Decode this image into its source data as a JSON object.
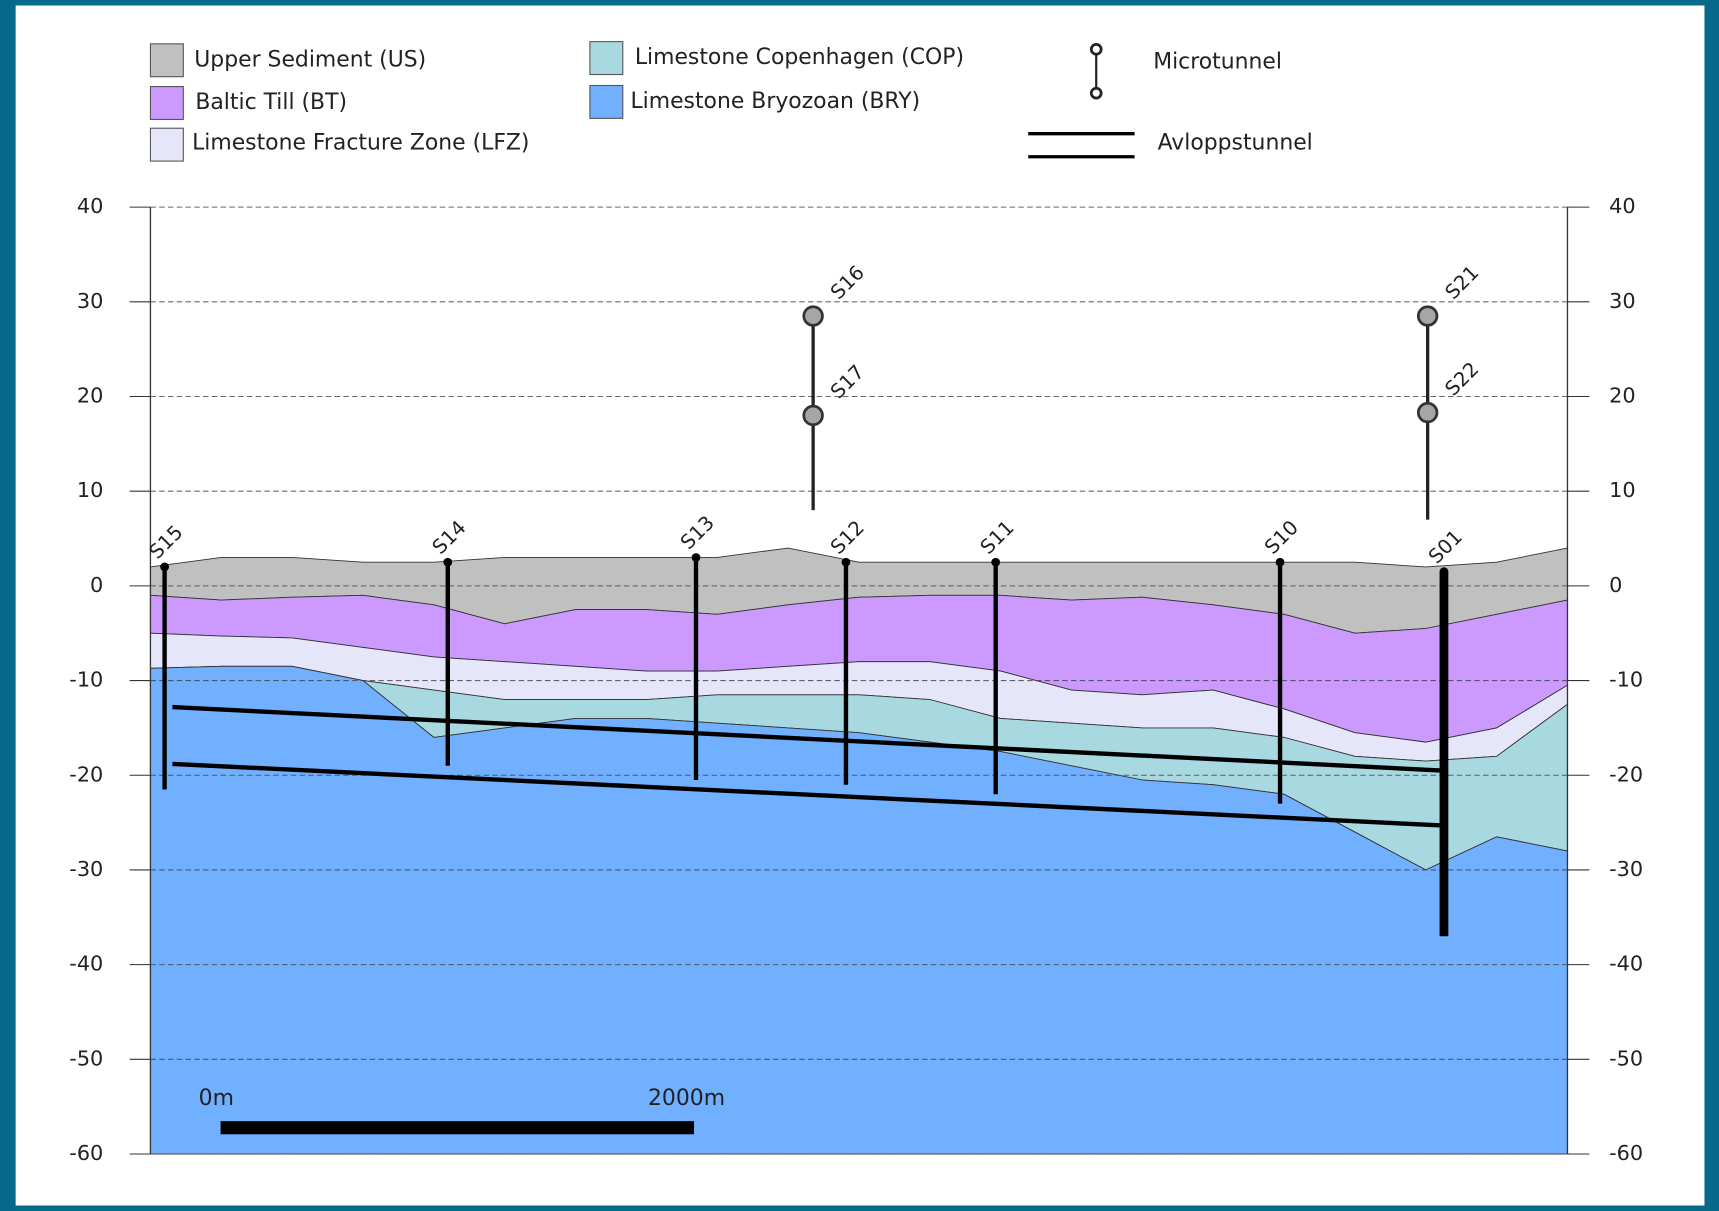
{
  "chart_data": {
    "type": "section",
    "xlim": [
      0,
      6000
    ],
    "ylim": [
      -60,
      40
    ],
    "yticks": [
      40,
      30,
      20,
      10,
      0,
      -10,
      -20,
      -30,
      -40,
      -50,
      -60
    ],
    "grid": true,
    "x": [
      0,
      300,
      600,
      900,
      1200,
      1500,
      1800,
      2100,
      2400,
      2700,
      3000,
      3300,
      3600,
      3900,
      4200,
      4500,
      4800,
      5100,
      5400,
      5700,
      6000
    ],
    "series": [
      {
        "name": "Upper Sediment (US)",
        "color": "#c0c0c0",
        "values": [
          2,
          3,
          3,
          2.5,
          2.5,
          3,
          3,
          3,
          3,
          4,
          2.5,
          2.5,
          2.5,
          2.5,
          2.5,
          2.5,
          2.5,
          2.5,
          2,
          2.5,
          4
        ]
      },
      {
        "name": "Baltic Till (BT)",
        "color": "#cc99ff",
        "values": [
          -1,
          -1.5,
          -1.2,
          -1,
          -2,
          -4,
          -2.5,
          -2.5,
          -3,
          -2,
          -1.2,
          -1,
          -1,
          -1.5,
          -1.2,
          -2,
          -3,
          -5,
          -4.5,
          -3,
          -1.5
        ]
      },
      {
        "name": "Limestone Fracture Zone (LFZ)",
        "color": "#e6e6fa",
        "values": [
          -5,
          -5.3,
          -5.5,
          -6.5,
          -7.5,
          -8,
          -8.5,
          -9,
          -9,
          -8.5,
          -8,
          -8,
          -9,
          -11,
          -11.5,
          -11,
          -13,
          -15.5,
          -16.5,
          -15,
          -10.5
        ]
      },
      {
        "name": "Limestone Copenhagen (COP)",
        "color": "#a8d8e0",
        "values": [
          -8.7,
          -8.5,
          -8.5,
          -10,
          -11,
          -12,
          -12,
          -12,
          -11.5,
          -11.5,
          -11.5,
          -12,
          -14,
          -14.5,
          -15,
          -15,
          -16,
          -18,
          -18.5,
          -18,
          -12.5
        ]
      },
      {
        "name": "Limestone Bryozoan (BRY)",
        "color": "#70b0ff",
        "values": [
          -8.7,
          -8.5,
          -8.5,
          -10,
          -16,
          -15,
          -14,
          -14,
          -14.5,
          -15,
          -15.5,
          -16.5,
          -17.5,
          -19,
          -20.5,
          -21,
          -22,
          -26,
          -30,
          -26.5,
          -28
        ]
      }
    ],
    "microtunnel_legend": "Microtunnel",
    "tunnel_legend": "Avloppstunnel",
    "boreholes": [
      {
        "name": "S15",
        "x": 60,
        "top": 2,
        "bottom": -21.5
      },
      {
        "name": "S14",
        "x": 1259,
        "top": 2.5,
        "bottom": -19
      },
      {
        "name": "S13",
        "x": 2310,
        "top": 3,
        "bottom": -20.5
      },
      {
        "name": "S12",
        "x": 2945,
        "top": 2.5,
        "bottom": -21
      },
      {
        "name": "S11",
        "x": 3579,
        "top": 2.5,
        "bottom": -22
      },
      {
        "name": "S10",
        "x": 4783,
        "top": 2.5,
        "bottom": -23
      },
      {
        "name": "S01",
        "x": 5477,
        "top": 1.5,
        "bottom": -37
      }
    ],
    "microtunnels": [
      {
        "names": [
          "S16",
          "S17"
        ],
        "x": 2806,
        "levels": [
          28.5,
          18
        ],
        "bottom": 8
      },
      {
        "names": [
          "S21",
          "S22"
        ],
        "x": 5408,
        "levels": [
          28.5,
          18.3
        ],
        "bottom": 7
      }
    ],
    "tunnels": [
      {
        "x": [
          93,
          5468
        ],
        "y": [
          -12.8,
          -19.5
        ]
      },
      {
        "x": [
          93,
          5468
        ],
        "y": [
          -18.8,
          -25.3
        ]
      }
    ],
    "scale_bar": {
      "labels": [
        "0m",
        "2000m"
      ]
    }
  }
}
